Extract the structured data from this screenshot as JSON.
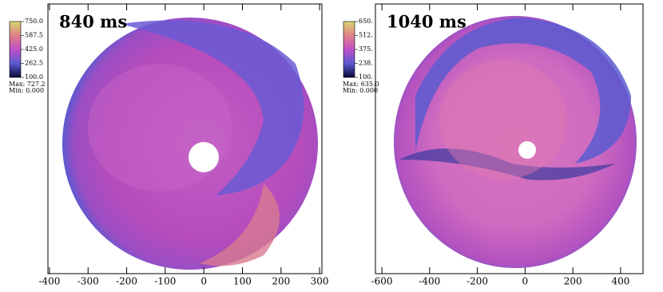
{
  "chart_data": [
    {
      "type": "heatmap",
      "title": "840 ms",
      "xlim": [
        -404,
        306
      ],
      "xticks": [
        -400,
        -300,
        -200,
        -100,
        0,
        100,
        200,
        300
      ],
      "clim": [
        100,
        750
      ],
      "cticks": [
        {
          "value": 750,
          "label": "750.0"
        },
        {
          "value": 587.5,
          "label": "587.5"
        },
        {
          "value": 425,
          "label": "425.0"
        },
        {
          "value": 262.5,
          "label": "262.5"
        },
        {
          "value": 100,
          "label": "100.0"
        }
      ],
      "colormap": [
        "#0a0a3a",
        "#5a5ad0",
        "#c050c8",
        "#e08088",
        "#d8d870"
      ],
      "stats": [
        "Max:  727.2",
        "Min:  0.000"
      ]
    },
    {
      "type": "heatmap",
      "title": "1040 ms",
      "xlim": [
        -627,
        494
      ],
      "xticks": [
        -600,
        -400,
        -200,
        0,
        200,
        400
      ],
      "clim": [
        100,
        650
      ],
      "cticks": [
        {
          "value": 650,
          "label": "650."
        },
        {
          "value": 512,
          "label": "512."
        },
        {
          "value": 375,
          "label": "375."
        },
        {
          "value": 238,
          "label": "238."
        },
        {
          "value": 100,
          "label": "100."
        }
      ],
      "colormap": [
        "#0a0a3a",
        "#5a5ad0",
        "#c050c8",
        "#e08088",
        "#d8d870"
      ],
      "stats": [
        "Max:  635.0",
        "Min:  0.000"
      ]
    }
  ]
}
